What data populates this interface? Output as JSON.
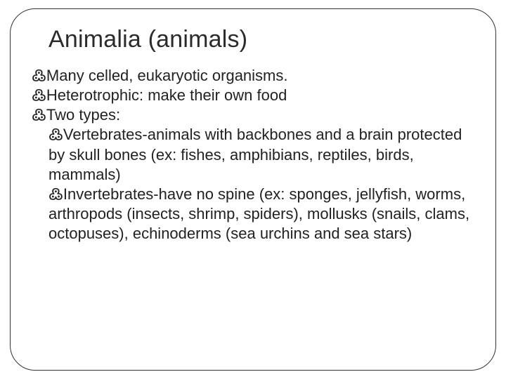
{
  "title": "Animalia (animals)",
  "bullet_glyph": "߷",
  "text_color": "#222222",
  "title_color": "#2b2b2b",
  "border_color": "#333333",
  "background_color": "#ffffff",
  "title_fontsize": 34,
  "body_fontsize": 22,
  "items": {
    "a": "Many celled, eukaryotic organisms.",
    "b": "Heterotrophic: make their own food",
    "c": "Two types:",
    "c1": "Vertebrates-animals with backbones and a brain protected by skull bones (ex: fishes, amphibians, reptiles, birds, mammals)",
    "c2": "Invertebrates-have no spine (ex: sponges, jellyfish, worms, arthropods (insects, shrimp, spiders), mollusks (snails, clams, octopuses), echinoderms (sea urchins and sea stars)"
  }
}
